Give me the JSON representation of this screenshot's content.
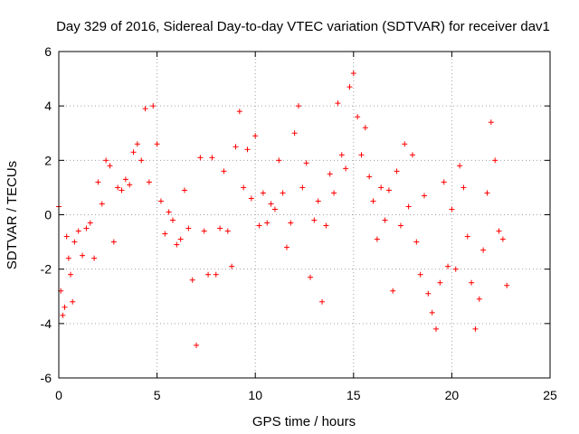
{
  "chart_data": {
    "type": "scatter",
    "title": "Day 329 of 2016, Sidereal Day-to-day VTEC variation (SDTVAR) for receiver dav1",
    "xlabel": "GPS time / hours",
    "ylabel": "SDTVAR / TECUs",
    "xlim": [
      0,
      25
    ],
    "ylim": [
      -6,
      6
    ],
    "x_ticks": [
      0,
      5,
      10,
      15,
      20,
      25
    ],
    "x_tick_labels": [
      "0",
      "5",
      "10",
      "15",
      "20",
      "25"
    ],
    "y_ticks": [
      -6,
      -4,
      -2,
      0,
      2,
      4,
      6
    ],
    "y_tick_labels": [
      "-6",
      "-4",
      "-2",
      "0",
      "2",
      "4",
      "6"
    ],
    "grid": true,
    "marker": "+",
    "color": "#ff0000",
    "series": [
      {
        "name": "SDTVAR",
        "x": [
          0.0,
          0.1,
          0.2,
          0.3,
          0.4,
          0.5,
          0.6,
          0.7,
          0.8,
          1.0,
          1.2,
          1.4,
          1.6,
          1.8,
          2.0,
          2.2,
          2.4,
          2.6,
          2.8,
          3.0,
          3.2,
          3.4,
          3.6,
          3.8,
          4.0,
          4.2,
          4.4,
          4.6,
          4.8,
          5.0,
          5.2,
          5.4,
          5.6,
          5.8,
          6.0,
          6.2,
          6.4,
          6.6,
          6.8,
          7.0,
          7.2,
          7.4,
          7.6,
          7.8,
          8.0,
          8.2,
          8.4,
          8.6,
          8.8,
          9.0,
          9.2,
          9.4,
          9.6,
          9.8,
          10.0,
          10.2,
          10.4,
          10.6,
          10.8,
          11.0,
          11.2,
          11.4,
          11.6,
          11.8,
          12.0,
          12.2,
          12.4,
          12.6,
          12.8,
          13.0,
          13.2,
          13.4,
          13.6,
          13.8,
          14.0,
          14.2,
          14.4,
          14.6,
          14.8,
          15.0,
          15.2,
          15.4,
          15.6,
          15.8,
          16.0,
          16.2,
          16.4,
          16.6,
          16.8,
          17.0,
          17.2,
          17.4,
          17.6,
          17.8,
          18.0,
          18.2,
          18.4,
          18.6,
          18.8,
          19.0,
          19.2,
          19.4,
          19.6,
          19.8,
          20.0,
          20.2,
          20.4,
          20.6,
          20.8,
          21.0,
          21.2,
          21.4,
          21.6,
          21.8,
          22.0,
          22.2,
          22.4,
          22.6,
          22.8
        ],
        "y": [
          0.3,
          -2.8,
          -3.7,
          -3.4,
          -0.8,
          -1.6,
          -2.2,
          -3.2,
          -1.0,
          -0.6,
          -1.5,
          -0.5,
          -0.3,
          -1.6,
          1.2,
          0.4,
          2.0,
          1.8,
          -1.0,
          1.0,
          0.9,
          1.3,
          1.1,
          2.3,
          2.6,
          2.0,
          3.9,
          1.2,
          4.0,
          2.6,
          0.5,
          -0.7,
          0.1,
          -0.2,
          -1.1,
          -0.9,
          0.9,
          -0.5,
          -2.4,
          -4.8,
          2.1,
          -0.6,
          -2.2,
          2.1,
          -2.2,
          -0.5,
          1.6,
          -0.6,
          -1.9,
          2.5,
          3.8,
          1.0,
          2.4,
          0.6,
          2.9,
          -0.4,
          0.8,
          -0.3,
          0.4,
          0.2,
          2.0,
          0.8,
          -1.2,
          -0.3,
          3.0,
          4.0,
          1.0,
          1.9,
          -2.3,
          -0.2,
          0.5,
          -3.2,
          -0.4,
          1.5,
          0.8,
          4.1,
          2.2,
          1.7,
          4.7,
          5.2,
          3.6,
          2.2,
          3.2,
          1.4,
          0.5,
          -0.9,
          1.0,
          -0.2,
          0.9,
          -2.8,
          1.6,
          -0.4,
          2.6,
          0.3,
          2.2,
          -1.0,
          -2.2,
          0.7,
          -2.9,
          -3.6,
          -4.2,
          -2.5,
          1.2,
          -1.9,
          0.2,
          -2.0,
          1.8,
          1.0,
          -0.8,
          -2.5,
          -4.2,
          -3.1,
          -1.3,
          0.8,
          3.4,
          2.0,
          -0.6,
          -0.9,
          -2.6
        ]
      }
    ]
  }
}
